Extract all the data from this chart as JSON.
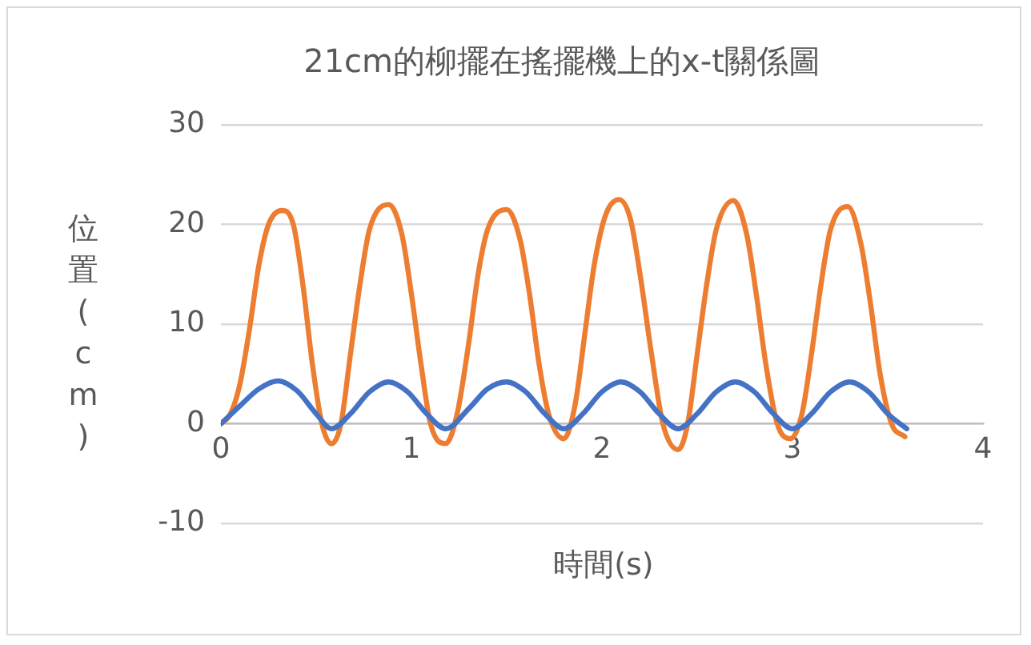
{
  "chart_data": {
    "type": "line",
    "title": "21cm的柳擺在搖擺機上的x-t關係圖",
    "xlabel": "時間(s)",
    "ylabel": "位置(cm)",
    "xlim": [
      0,
      4
    ],
    "xticks": [
      0,
      1,
      2,
      3,
      4
    ],
    "ylim": [
      -10,
      30
    ],
    "yticks": [
      -10,
      0,
      10,
      20,
      30
    ],
    "grid": "y",
    "legend": false,
    "marker": "none",
    "line_style": "solid",
    "series": [
      {
        "color": "#4472c4",
        "x": [
          0,
          0.1,
          0.2,
          0.3,
          0.4,
          0.5,
          0.58,
          0.68,
          0.78,
          0.88,
          0.98,
          1.08,
          1.18,
          1.3,
          1.4,
          1.5,
          1.6,
          1.7,
          1.8,
          1.9,
          2.0,
          2.1,
          2.2,
          2.3,
          2.4,
          2.5,
          2.6,
          2.7,
          2.8,
          2.9,
          3.0,
          3.1,
          3.2,
          3.3,
          3.4,
          3.5,
          3.6
        ],
        "values": [
          0,
          1.8,
          3.5,
          4.3,
          3.3,
          1,
          -0.5,
          1,
          3.2,
          4.2,
          3.2,
          1,
          -0.5,
          1.5,
          3.5,
          4.2,
          3.2,
          1,
          -0.5,
          1,
          3.2,
          4.2,
          3.2,
          1,
          -0.5,
          1,
          3.2,
          4.2,
          3.2,
          1,
          -0.5,
          1,
          3.2,
          4.2,
          3.2,
          1,
          -0.5
        ]
      },
      {
        "color": "#ed7d31",
        "x": [
          0,
          0.05,
          0.1,
          0.15,
          0.2,
          0.25,
          0.32,
          0.38,
          0.43,
          0.48,
          0.53,
          0.58,
          0.63,
          0.68,
          0.73,
          0.78,
          0.88,
          0.95,
          1.0,
          1.05,
          1.1,
          1.18,
          1.24,
          1.3,
          1.35,
          1.4,
          1.5,
          1.57,
          1.62,
          1.67,
          1.72,
          1.8,
          1.86,
          1.91,
          1.96,
          2.02,
          2.09,
          2.15,
          2.2,
          2.26,
          2.32,
          2.4,
          2.45,
          2.5,
          2.55,
          2.6,
          2.69,
          2.76,
          2.81,
          2.86,
          2.92,
          2.99,
          3.05,
          3.1,
          3.15,
          3.2,
          3.29,
          3.36,
          3.41,
          3.46,
          3.52,
          3.59
        ],
        "values": [
          0,
          1,
          4,
          9.5,
          16,
          20,
          21.4,
          20,
          14,
          6,
          0,
          -2,
          0,
          7,
          14,
          19.5,
          22,
          19,
          13,
          6,
          0,
          -2,
          1,
          8,
          15,
          19.5,
          21.5,
          18.5,
          13,
          6,
          1,
          -1.5,
          2,
          9,
          16,
          21,
          22.5,
          20.5,
          15,
          7,
          0,
          -2.6,
          0,
          7,
          14,
          19.5,
          22.4,
          19,
          13,
          6,
          0,
          -1.5,
          1,
          7,
          14,
          19.5,
          21.8,
          18,
          12,
          5,
          0,
          -1.3
        ]
      }
    ]
  }
}
